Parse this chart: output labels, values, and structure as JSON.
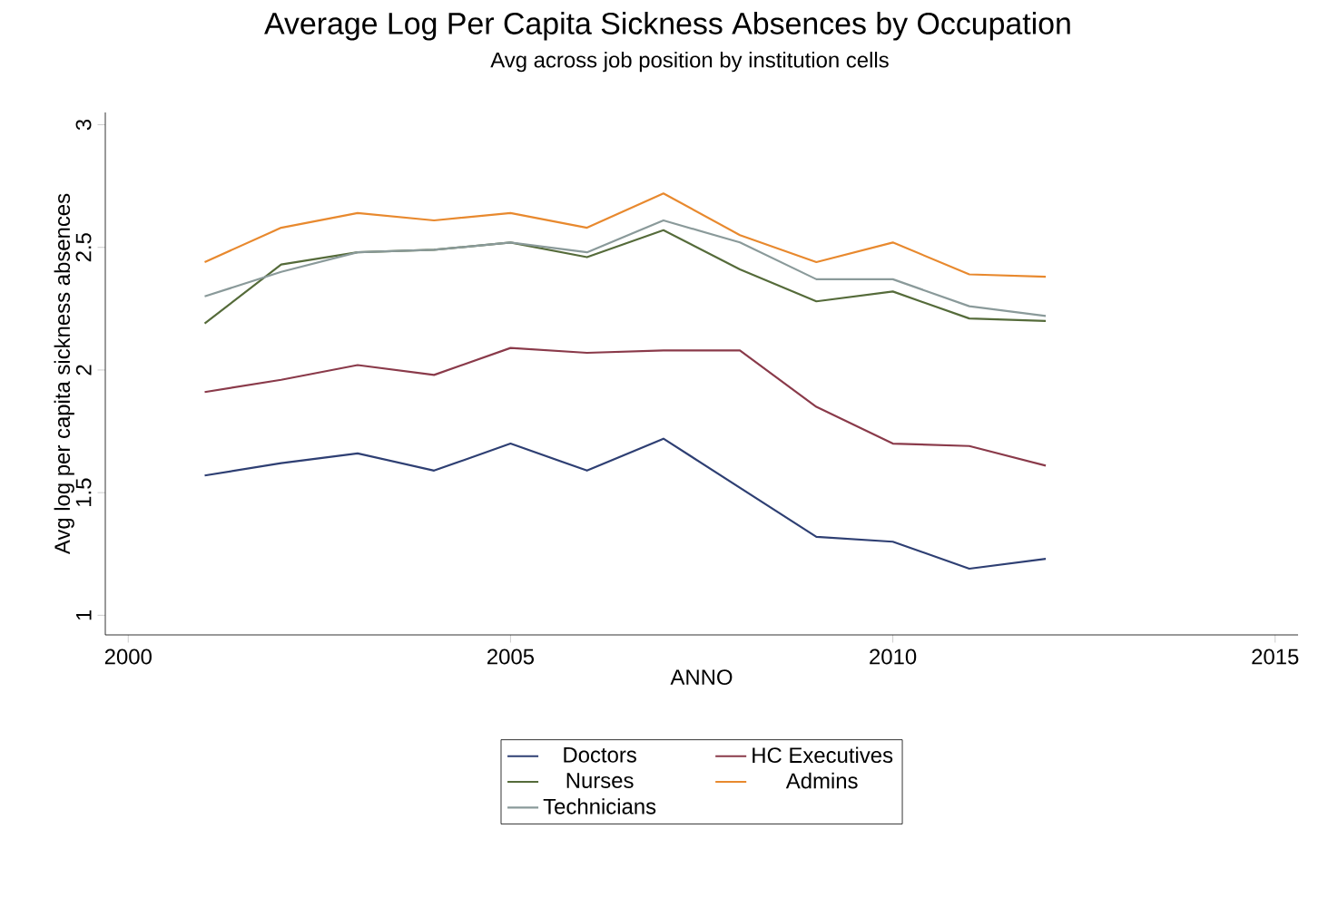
{
  "chart_data": {
    "type": "line",
    "title": "Average Log Per Capita Sickness Absences by Occupation",
    "subtitle": "Avg across job position by institution cells",
    "xlabel": "ANNO",
    "ylabel": "Avg log per capita sickness absences",
    "x": [
      2001,
      2002,
      2003,
      2004,
      2005,
      2006,
      2007,
      2008,
      2009,
      2010,
      2011,
      2012
    ],
    "series": [
      {
        "name": "Doctors",
        "color": "#2e3f73",
        "values": [
          1.57,
          1.62,
          1.66,
          1.59,
          1.7,
          1.59,
          1.72,
          1.52,
          1.32,
          1.3,
          1.19,
          1.23
        ]
      },
      {
        "name": "HC Executives",
        "color": "#8a3a4a",
        "values": [
          1.91,
          1.96,
          2.02,
          1.98,
          2.09,
          2.07,
          2.08,
          2.08,
          1.85,
          1.7,
          1.69,
          1.61
        ]
      },
      {
        "name": "Nurses",
        "color": "#556b3a",
        "values": [
          2.19,
          2.43,
          2.48,
          2.49,
          2.52,
          2.46,
          2.57,
          2.41,
          2.28,
          2.32,
          2.21,
          2.2
        ]
      },
      {
        "name": "Admins",
        "color": "#e8892e",
        "values": [
          2.44,
          2.58,
          2.64,
          2.61,
          2.64,
          2.58,
          2.72,
          2.55,
          2.44,
          2.52,
          2.39,
          2.38
        ]
      },
      {
        "name": "Technicians",
        "color": "#8a9a9a",
        "values": [
          2.3,
          2.4,
          2.48,
          2.49,
          2.52,
          2.48,
          2.61,
          2.52,
          2.37,
          2.37,
          2.26,
          2.22
        ]
      }
    ],
    "xlim": [
      1999.7,
      2015.3
    ],
    "ylim": [
      0.92,
      3.05
    ],
    "xticks": [
      2000,
      2005,
      2010,
      2015
    ],
    "yticks": [
      1,
      1.5,
      2,
      2.5,
      3
    ],
    "grid": false,
    "legend": "bottom",
    "marker": "none",
    "line_style": "solid"
  }
}
